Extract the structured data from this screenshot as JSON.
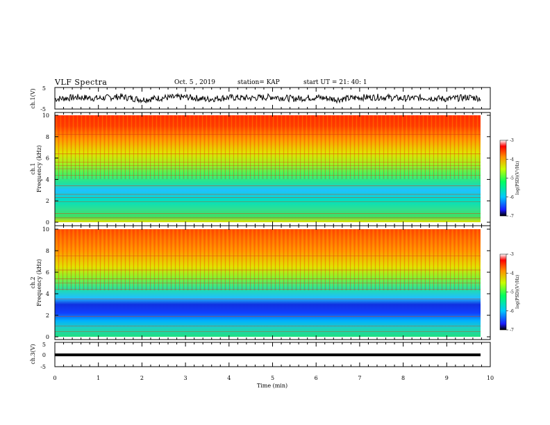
{
  "header": {
    "title": "VLF Spectra",
    "date": "Oct. 5 , 2019",
    "station": "station= KAP",
    "start": "start  UT =  21: 40: 1"
  },
  "panels": {
    "ch1_wave_label": "ch.1(V)",
    "ch1_spec_label": "ch.1",
    "ch2_spec_label": "ch.2",
    "ch3_wave_label": "ch.3(V)",
    "freq_axis_label": "Frequency (kHz)",
    "colorbar_label": "log(PSD)(V²/Hz)"
  },
  "chart_data": [
    {
      "type": "line",
      "name": "ch1-waveform",
      "ylabel": "ch.1(V)",
      "ylim": [
        -5,
        5
      ],
      "yticks": [
        "5",
        "-5"
      ],
      "xlim": [
        0,
        10
      ],
      "x": [
        0,
        0.5,
        1,
        1.5,
        2,
        2.5,
        3,
        3.5,
        4,
        4.5,
        5,
        5.5,
        6,
        6.5,
        7,
        7.5,
        8,
        8.5,
        9,
        9.5,
        9.8
      ],
      "y": [
        -0.5,
        0.3,
        -0.2,
        0.6,
        -0.8,
        0.1,
        0.4,
        -0.6,
        0.2,
        -0.1,
        0.5,
        -0.4,
        0.3,
        -0.7,
        0.2,
        0.4,
        -0.3,
        0.1,
        -0.5,
        0.3,
        -0.2
      ]
    },
    {
      "type": "heatmap",
      "name": "ch1-spectrogram",
      "ylabel": "Frequency (kHz)",
      "ylim": [
        0,
        10
      ],
      "yticks": [
        "0",
        "2",
        "4",
        "6",
        "8",
        "10"
      ],
      "xlim": [
        0,
        10
      ],
      "frequency_khz": [
        0,
        0.5,
        1,
        1.5,
        2,
        2.5,
        3,
        3.5,
        4,
        4.5,
        5,
        5.5,
        6,
        6.5,
        7,
        7.5,
        8,
        8.5,
        9,
        9.5,
        10
      ],
      "log_psd": [
        -4.5,
        -5.0,
        -5.1,
        -5.2,
        -5.3,
        -5.4,
        -5.6,
        -5.5,
        -5.0,
        -4.9,
        -4.9,
        -4.7,
        -4.3,
        -4.2,
        -4.0,
        -3.9,
        -3.8,
        -3.7,
        -3.7,
        -3.6,
        -3.6
      ],
      "colorbar": {
        "min": -7,
        "max": -3,
        "ticks": [
          "-3",
          "-4",
          "-5",
          "-6",
          "-7"
        ]
      }
    },
    {
      "type": "heatmap",
      "name": "ch2-spectrogram",
      "ylabel": "Frequency (kHz)",
      "ylim": [
        0,
        10
      ],
      "yticks": [
        "0",
        "2",
        "4",
        "6",
        "8",
        "10"
      ],
      "xlim": [
        0,
        10
      ],
      "frequency_khz": [
        0,
        0.5,
        1,
        1.5,
        2,
        2.5,
        3,
        3.5,
        4,
        4.5,
        5,
        5.5,
        6,
        6.5,
        7,
        7.5,
        8,
        8.5,
        9,
        9.5,
        10
      ],
      "log_psd": [
        -5.1,
        -5.2,
        -5.3,
        -5.4,
        -5.8,
        -6.0,
        -6.0,
        -5.6,
        -5.2,
        -5.0,
        -4.9,
        -4.6,
        -4.3,
        -4.2,
        -4.0,
        -3.9,
        -3.9,
        -3.8,
        -3.8,
        -3.7,
        -3.7
      ],
      "colorbar": {
        "min": -7,
        "max": -3,
        "ticks": [
          "-3",
          "-4",
          "-5",
          "-6",
          "-7"
        ]
      }
    },
    {
      "type": "line",
      "name": "ch3-waveform",
      "ylabel": "ch.3(V)",
      "ylim": [
        -5,
        5
      ],
      "yticks": [
        "5",
        "0",
        "-5"
      ],
      "xlim": [
        0,
        10
      ],
      "xlabel": "Time (min)",
      "xticks": [
        "0",
        "1",
        "2",
        "3",
        "4",
        "5",
        "6",
        "7",
        "8",
        "9",
        "10"
      ],
      "x": [
        0,
        9.8
      ],
      "y": [
        0,
        0
      ]
    }
  ]
}
